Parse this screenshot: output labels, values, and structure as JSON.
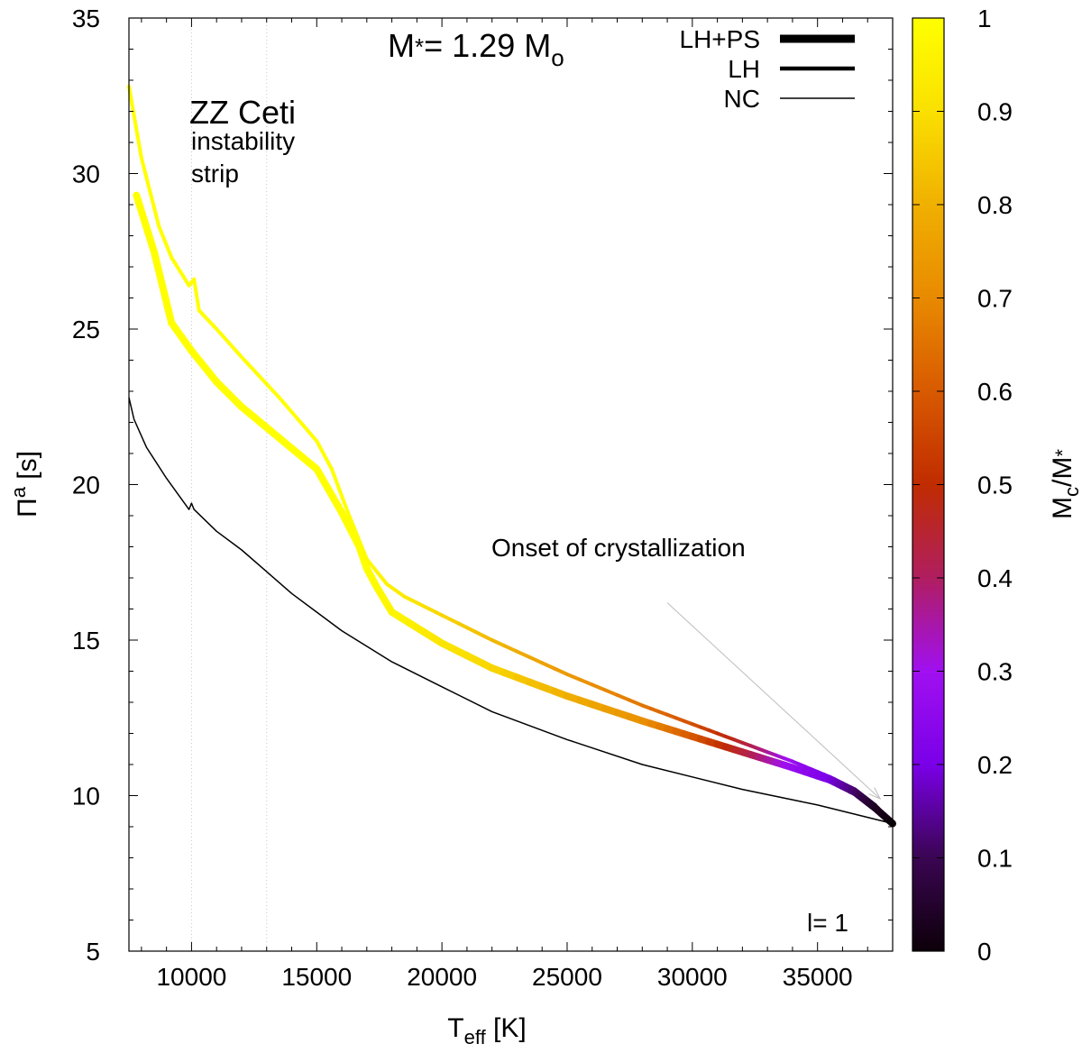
{
  "chart_data": {
    "type": "line",
    "title": "M*= 1.29 Mo",
    "title_parts": {
      "m": "M",
      "star": "*",
      "eq": "= 1.29 M",
      "sub": "o"
    },
    "xlabel": "Teff [K]",
    "xlabel_parts": {
      "main": "T",
      "sub": "eff",
      "unit": " [K]"
    },
    "ylabel": "Πa [s]",
    "ylabel_parts": {
      "main": "Π",
      "sup": "a",
      "unit": " [s]"
    },
    "xlim": [
      7500,
      38000
    ],
    "ylim": [
      5,
      35
    ],
    "x_ticks": [
      10000,
      15000,
      20000,
      25000,
      30000,
      35000
    ],
    "y_ticks": [
      5,
      10,
      15,
      20,
      25,
      30,
      35
    ],
    "grid": false,
    "legend_position": "top-right",
    "instability_strip": {
      "bounds": [
        10000,
        13000
      ],
      "label_title": "ZZ Ceti",
      "label_line1": "instability",
      "label_line2": "strip"
    },
    "mode_label": "l= 1",
    "annotation": {
      "text": "Onset of crystallization",
      "arrow_from": [
        29000,
        16.2
      ],
      "arrow_to": [
        37500,
        9.9
      ]
    },
    "colorbar": {
      "label": "Mc/M*",
      "label_parts": {
        "m": "M",
        "sub": "c",
        "rest": "/M",
        "star": "*"
      },
      "range": [
        0,
        1
      ],
      "ticks": [
        "0",
        "0.1",
        "0.2",
        "0.3",
        "0.4",
        "0.5",
        "0.6",
        "0.7",
        "0.8",
        "0.9",
        "1"
      ],
      "colors": [
        "#0d0009",
        "#3a0552",
        "#7a00e8",
        "#a010f0",
        "#b01e60",
        "#c02c00",
        "#d85a00",
        "#e88a00",
        "#f0b000",
        "#fae000",
        "#ffff00"
      ]
    },
    "crystallization_onset_teff": 37500,
    "series": [
      {
        "name": "LH+PS",
        "style": "thick",
        "colored_by": "Mc/M*",
        "x": [
          7800,
          8500,
          9200,
          10000,
          11000,
          12000,
          13500,
          15000,
          16000,
          16700,
          17000,
          17400,
          18000,
          20000,
          22000,
          25000,
          28000,
          30000,
          32000,
          34000,
          35500,
          36500,
          37300,
          38000
        ],
        "y": [
          29.3,
          27.5,
          25.2,
          24.3,
          23.3,
          22.5,
          21.5,
          20.5,
          19.1,
          18.0,
          17.3,
          16.7,
          15.9,
          14.9,
          14.1,
          13.2,
          12.4,
          11.9,
          11.4,
          10.9,
          10.5,
          10.1,
          9.6,
          9.1
        ],
        "mc_frac": [
          1.0,
          1.0,
          1.0,
          1.0,
          1.0,
          1.0,
          1.0,
          1.0,
          1.0,
          1.0,
          1.0,
          0.99,
          0.97,
          0.92,
          0.88,
          0.8,
          0.72,
          0.6,
          0.45,
          0.28,
          0.2,
          0.12,
          0.04,
          0.0
        ]
      },
      {
        "name": "LH",
        "style": "medium",
        "colored_by": "Mc/M*",
        "x": [
          7500,
          8000,
          8700,
          9200,
          9900,
          10100,
          10300,
          11000,
          12000,
          13500,
          15000,
          15600,
          16200,
          17000,
          17800,
          18500,
          20000,
          22000,
          25000,
          28000,
          30000,
          32000,
          34000,
          35500,
          36500,
          37300,
          38000
        ],
        "y": [
          32.8,
          30.5,
          28.3,
          27.3,
          26.4,
          26.6,
          25.6,
          25.0,
          24.1,
          22.8,
          21.4,
          20.5,
          19.2,
          17.6,
          16.8,
          16.4,
          15.8,
          15.0,
          13.9,
          12.9,
          12.3,
          11.7,
          11.1,
          10.6,
          10.2,
          9.7,
          9.1
        ],
        "mc_frac": [
          1.0,
          1.0,
          1.0,
          1.0,
          1.0,
          1.0,
          1.0,
          1.0,
          1.0,
          1.0,
          1.0,
          1.0,
          1.0,
          0.99,
          0.96,
          0.93,
          0.88,
          0.82,
          0.74,
          0.66,
          0.58,
          0.45,
          0.28,
          0.2,
          0.12,
          0.04,
          0.0
        ]
      },
      {
        "name": "NC",
        "style": "thin",
        "colored_by": null,
        "x": [
          7500,
          7700,
          8200,
          9000,
          9900,
          10000,
          10100,
          11000,
          12000,
          13000,
          14000,
          15000,
          16000,
          17000,
          18000,
          20000,
          22000,
          25000,
          28000,
          30000,
          32000,
          35000,
          38000
        ],
        "y": [
          22.8,
          22.1,
          21.2,
          20.2,
          19.2,
          19.4,
          19.2,
          18.5,
          17.9,
          17.2,
          16.5,
          15.9,
          15.3,
          14.8,
          14.3,
          13.5,
          12.7,
          11.8,
          11.0,
          10.6,
          10.2,
          9.7,
          9.1
        ]
      }
    ]
  }
}
